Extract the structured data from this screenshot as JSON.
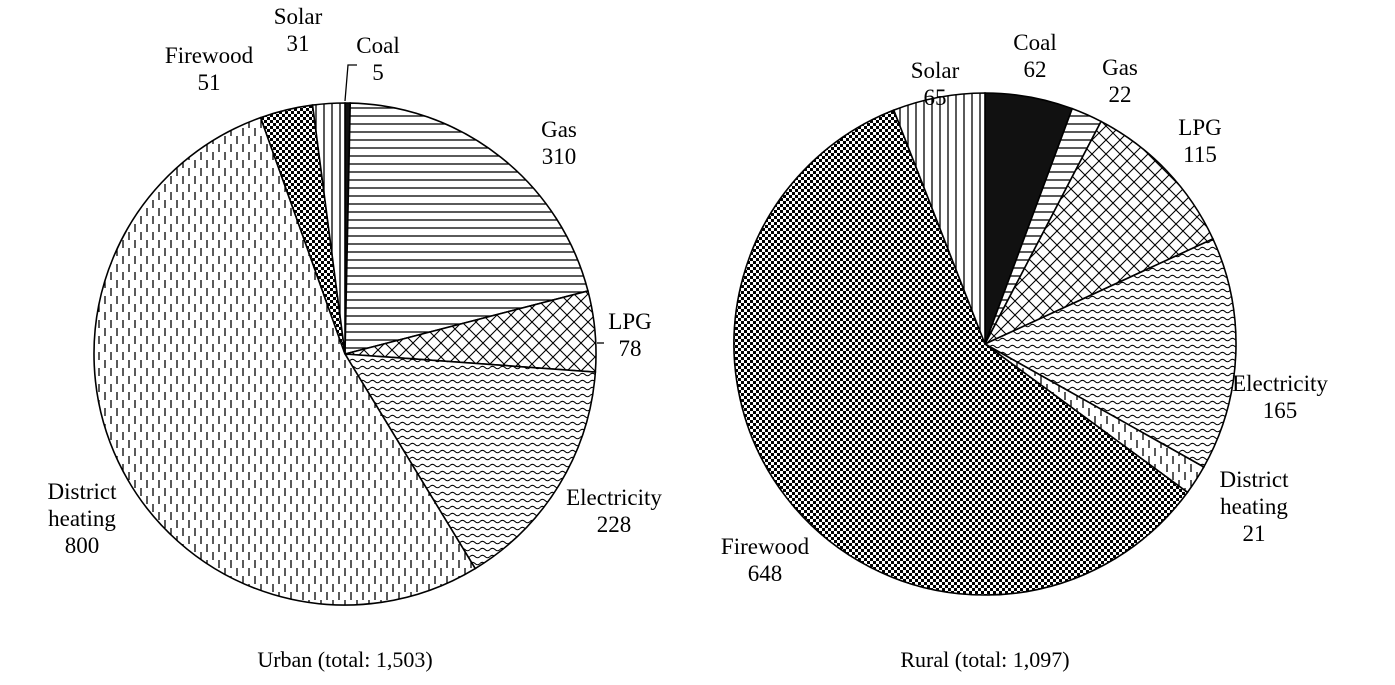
{
  "chart_data": [
    {
      "type": "pie",
      "title": "Urban (total: 1,503)",
      "categories": [
        "Coal",
        "Gas",
        "LPG",
        "Electricity",
        "District heating",
        "Firewood",
        "Solar"
      ],
      "values": [
        5,
        310,
        78,
        228,
        800,
        51,
        31
      ],
      "labels": [
        {
          "name": "Coal",
          "value": "5"
        },
        {
          "name": "Gas",
          "value": "310"
        },
        {
          "name": "LPG",
          "value": "78"
        },
        {
          "name": "Electricity",
          "value": "228"
        },
        {
          "name": "District heating",
          "value": "800"
        },
        {
          "name": "Firewood",
          "value": "51"
        },
        {
          "name": "Solar",
          "value": "31"
        }
      ]
    },
    {
      "type": "pie",
      "title": "Rural (total: 1,097)",
      "categories": [
        "Coal",
        "Gas",
        "LPG",
        "Electricity",
        "District heating",
        "Firewood",
        "Solar"
      ],
      "values": [
        62,
        22,
        115,
        165,
        21,
        648,
        65
      ],
      "labels": [
        {
          "name": "Coal",
          "value": "62"
        },
        {
          "name": "Gas",
          "value": "22"
        },
        {
          "name": "LPG",
          "value": "115"
        },
        {
          "name": "Electricity",
          "value": "165"
        },
        {
          "name": "District heating",
          "value": "21"
        },
        {
          "name": "Firewood",
          "value": "648"
        },
        {
          "name": "Solar",
          "value": "65"
        }
      ]
    }
  ],
  "legend_patterns": {
    "Coal": "solid-black",
    "Gas": "horizontal-lines",
    "LPG": "diagonal-crosshatch",
    "Electricity": "wavy-lines",
    "District heating": "dashed-vertical-lines",
    "Firewood": "checkerboard",
    "Solar": "vertical-lines"
  }
}
